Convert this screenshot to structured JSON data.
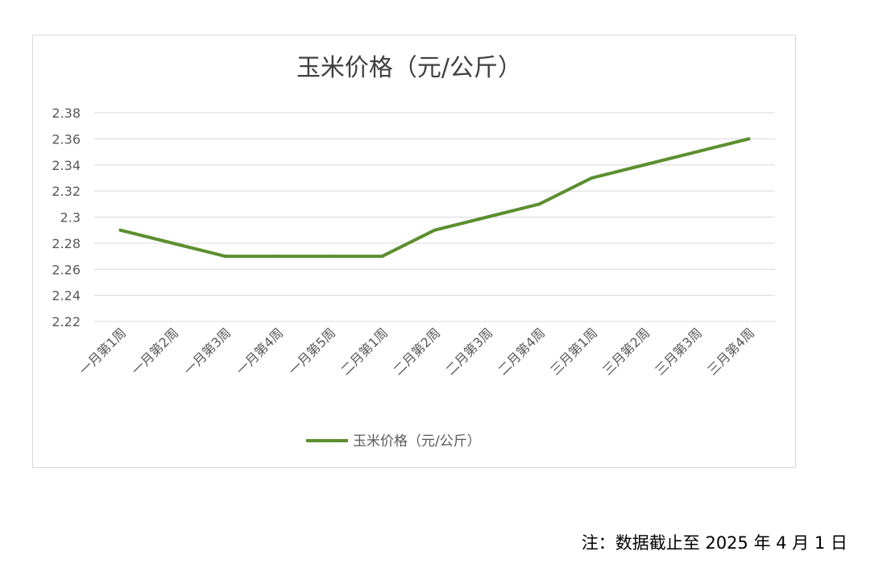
{
  "chart_data": {
    "type": "line",
    "title": "玉米价格（元/公斤）",
    "categories": [
      "一月第1周",
      "一月第2周",
      "一月第3周",
      "一月第4周",
      "一月第5周",
      "二月第1周",
      "二月第2周",
      "二月第3周",
      "二月第4周",
      "三月第1周",
      "三月第2周",
      "三月第3周",
      "三月第4周"
    ],
    "series": [
      {
        "name": "玉米价格（元/公斤）",
        "values": [
          2.29,
          2.28,
          2.27,
          2.27,
          2.27,
          2.27,
          2.29,
          2.3,
          2.31,
          2.33,
          2.34,
          2.35,
          2.36
        ],
        "color": "#5b8f2f"
      }
    ],
    "yticks": [
      "2.38",
      "2.36",
      "2.34",
      "2.32",
      "2.3",
      "2.28",
      "2.26",
      "2.24",
      "2.22"
    ],
    "ylim": [
      2.22,
      2.38
    ],
    "grid": true,
    "legend": "bottom"
  },
  "note": "注：数据截止至 2025 年 4 月 1 日",
  "colors": {
    "line": "#5b8f2f",
    "grid": "#d9d9d9",
    "text": "#595959"
  }
}
